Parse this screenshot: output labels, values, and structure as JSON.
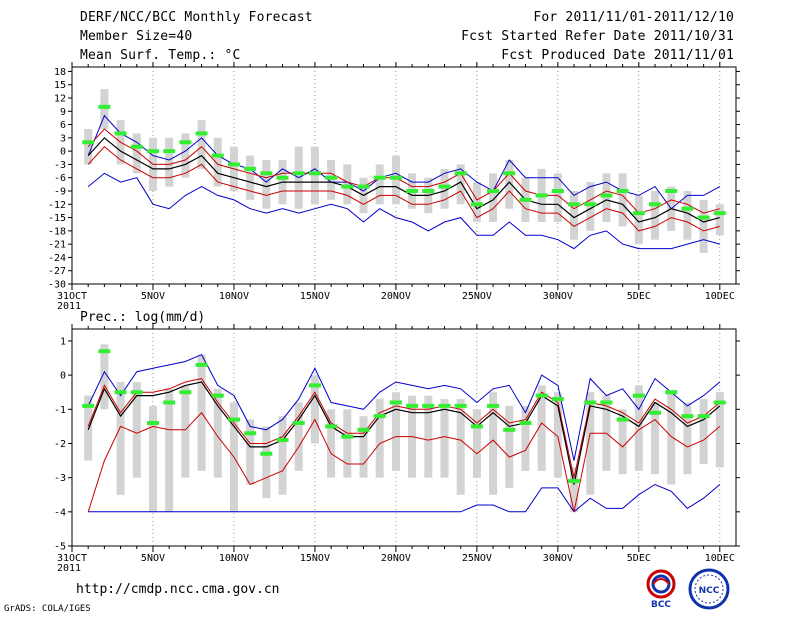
{
  "header": {
    "title": "DERF/NCC/BCC Monthly Forecast",
    "member_size": "Member Size=40",
    "variable": "Mean Surf. Temp.: °C",
    "period": "For 2011/11/01-2011/12/10",
    "started": "Fcst Started Refer Date 2011/10/31",
    "produced": "Fcst Produced Date 2011/11/01"
  },
  "footer": {
    "url": "http://cmdp.ncc.cma.gov.cn",
    "credit": "GrADS: COLA/IGES",
    "logo_left": "BCC",
    "logo_right": "NCC"
  },
  "colors": {
    "envelope": "#0000cc",
    "spread": "#cc0000",
    "mean": "#000000",
    "box": "#d3d3d3",
    "median": "#33ee33"
  },
  "chart_data": [
    {
      "type": "line",
      "title": "Mean Surf. Temp.: °C",
      "x_tick_labels": [
        "31OCT",
        "5NOV",
        "10NOV",
        "15NOV",
        "20NOV",
        "25NOV",
        "30NOV",
        "5DEC",
        "10DEC"
      ],
      "x_year_label": "2011",
      "x_tick_days": [
        0,
        5,
        10,
        15,
        20,
        25,
        30,
        35,
        40
      ],
      "y_tick_labels": [
        "18",
        "15",
        "12",
        "9",
        "6",
        "3",
        "0",
        "-3",
        "-6",
        "-9",
        "-12",
        "-15",
        "-18",
        "-21",
        "-24",
        "-27",
        "-30"
      ],
      "ylim": [
        -30,
        19
      ],
      "days": [
        1,
        2,
        3,
        4,
        5,
        6,
        7,
        8,
        9,
        10,
        11,
        12,
        13,
        14,
        15,
        16,
        17,
        18,
        19,
        20,
        21,
        22,
        23,
        24,
        25,
        26,
        27,
        28,
        29,
        30,
        31,
        32,
        33,
        34,
        35,
        36,
        37,
        38,
        39,
        40
      ],
      "series": [
        {
          "name": "max",
          "values": [
            -1,
            8,
            4,
            2,
            -1,
            -2,
            0,
            3,
            -1,
            -3,
            -4,
            -7,
            -4,
            -6,
            -4,
            -7,
            -7,
            -9,
            -6,
            -5,
            -7,
            -7,
            -5,
            -4,
            -7,
            -9,
            -2,
            -6,
            -6,
            -6,
            -10,
            -8,
            -7,
            -9,
            -10,
            -8,
            -13,
            -10,
            -10,
            -8
          ]
        },
        {
          "name": "upper",
          "values": [
            1,
            5,
            2,
            0,
            -3,
            -3,
            -2,
            1,
            -3,
            -4,
            -5,
            -6,
            -5,
            -5,
            -5,
            -5,
            -7,
            -8,
            -6,
            -6,
            -8,
            -8,
            -7,
            -5,
            -11,
            -9,
            -5,
            -9,
            -10,
            -10,
            -13,
            -11,
            -9,
            -10,
            -14,
            -13,
            -11,
            -12,
            -14,
            -13
          ]
        },
        {
          "name": "mean",
          "values": [
            -1,
            3,
            0,
            -2,
            -4,
            -4,
            -3,
            -1,
            -5,
            -6,
            -7,
            -8,
            -7,
            -7,
            -7,
            -7,
            -8,
            -10,
            -8,
            -8,
            -10,
            -10,
            -9,
            -7,
            -13,
            -11,
            -7,
            -11,
            -12,
            -12,
            -15,
            -13,
            -11,
            -12,
            -16,
            -15,
            -13,
            -14,
            -16,
            -15
          ]
        },
        {
          "name": "lower",
          "values": [
            -3,
            1,
            -2,
            -4,
            -6,
            -6,
            -5,
            -3,
            -7,
            -8,
            -9,
            -10,
            -9,
            -9,
            -9,
            -9,
            -10,
            -12,
            -10,
            -10,
            -12,
            -12,
            -11,
            -9,
            -15,
            -13,
            -9,
            -13,
            -14,
            -14,
            -17,
            -15,
            -13,
            -14,
            -18,
            -17,
            -15,
            -16,
            -18,
            -17
          ]
        },
        {
          "name": "min",
          "values": [
            -8,
            -5,
            -7,
            -6,
            -12,
            -13,
            -10,
            -8,
            -10,
            -11,
            -13,
            -14,
            -13,
            -14,
            -13,
            -12,
            -13,
            -16,
            -13,
            -15,
            -16,
            -18,
            -16,
            -15,
            -19,
            -19,
            -16,
            -19,
            -19,
            -20,
            -22,
            -19,
            -18,
            -21,
            -22,
            -22,
            -22,
            -21,
            -20,
            -21
          ]
        },
        {
          "name": "median",
          "values": [
            2,
            10,
            4,
            1,
            0,
            0,
            2,
            4,
            -1,
            -3,
            -4,
            -5,
            -6,
            -5,
            -5,
            -6,
            -8,
            -8,
            -6,
            -6,
            -9,
            -9,
            -8,
            -5,
            -12,
            -9,
            -5,
            -11,
            -10,
            -9,
            -12,
            -12,
            -10,
            -9,
            -14,
            -12,
            -9,
            -13,
            -15,
            -14
          ]
        },
        {
          "name": "box_high",
          "values": [
            5,
            14,
            7,
            4,
            3,
            3,
            4,
            7,
            3,
            1,
            -1,
            -2,
            -2,
            1,
            1,
            -2,
            -3,
            -6,
            -3,
            -1,
            -5,
            -6,
            -4,
            -3,
            -7,
            -5,
            -2,
            -6,
            -4,
            -5,
            -9,
            -7,
            -5,
            -5,
            -10,
            -9,
            -8,
            -9,
            -11,
            -12
          ]
        },
        {
          "name": "box_low",
          "values": [
            -3,
            5,
            -3,
            -5,
            -9,
            -8,
            -6,
            -4,
            -8,
            -9,
            -11,
            -13,
            -12,
            -13,
            -12,
            -11,
            -12,
            -14,
            -12,
            -12,
            -13,
            -14,
            -13,
            -12,
            -16,
            -16,
            -13,
            -16,
            -16,
            -16,
            -20,
            -18,
            -16,
            -17,
            -21,
            -20,
            -18,
            -20,
            -23,
            -19
          ]
        }
      ]
    },
    {
      "type": "line",
      "title": "Prec.: log(mm/d)",
      "x_tick_labels": [
        "31OCT",
        "5NOV",
        "10NOV",
        "15NOV",
        "20NOV",
        "25NOV",
        "30NOV",
        "5DEC",
        "10DEC"
      ],
      "x_year_label": "2011",
      "x_tick_days": [
        0,
        5,
        10,
        15,
        20,
        25,
        30,
        35,
        40
      ],
      "y_tick_labels": [
        "1",
        "0",
        "-1",
        "-2",
        "-3",
        "-4",
        "-5"
      ],
      "ylim": [
        -5,
        1.2
      ],
      "days": [
        1,
        2,
        3,
        4,
        5,
        6,
        7,
        8,
        9,
        10,
        11,
        12,
        13,
        14,
        15,
        16,
        17,
        18,
        19,
        20,
        21,
        22,
        23,
        24,
        25,
        26,
        27,
        28,
        29,
        30,
        31,
        32,
        33,
        34,
        35,
        36,
        37,
        38,
        39,
        40
      ],
      "series": [
        {
          "name": "max",
          "values": [
            -0.9,
            0.1,
            -0.6,
            0.1,
            0.2,
            0.3,
            0.4,
            0.6,
            -0.3,
            -0.6,
            -1.5,
            -1.6,
            -1.3,
            -0.7,
            0.2,
            -0.8,
            -0.9,
            -1.0,
            -0.5,
            -0.2,
            -0.3,
            -0.4,
            -0.3,
            -0.4,
            -0.8,
            -0.4,
            -0.3,
            -1.1,
            0.0,
            -0.3,
            -2.5,
            -0.1,
            -0.6,
            -0.4,
            -1.0,
            -0.1,
            -0.5,
            -0.9,
            -0.6,
            -0.2
          ]
        },
        {
          "name": "upper",
          "values": [
            -1.5,
            -0.3,
            -1.1,
            -0.5,
            -0.5,
            -0.4,
            -0.2,
            -0.1,
            -0.8,
            -1.4,
            -2.0,
            -2.0,
            -1.8,
            -1.2,
            -0.5,
            -1.4,
            -1.7,
            -1.7,
            -1.1,
            -0.9,
            -1.0,
            -1.0,
            -0.9,
            -1.0,
            -1.4,
            -1.0,
            -1.4,
            -1.3,
            -0.5,
            -0.8,
            -3.0,
            -0.8,
            -0.9,
            -1.1,
            -1.4,
            -0.7,
            -1.0,
            -1.4,
            -1.2,
            -0.8
          ]
        },
        {
          "name": "mean",
          "values": [
            -1.6,
            -0.4,
            -1.2,
            -0.6,
            -0.6,
            -0.5,
            -0.3,
            -0.2,
            -0.9,
            -1.5,
            -2.1,
            -2.1,
            -1.9,
            -1.3,
            -0.6,
            -1.5,
            -1.8,
            -1.8,
            -1.2,
            -1.0,
            -1.1,
            -1.1,
            -1.0,
            -1.1,
            -1.5,
            -1.1,
            -1.5,
            -1.4,
            -0.6,
            -0.9,
            -3.2,
            -0.9,
            -1.0,
            -1.2,
            -1.5,
            -0.8,
            -1.1,
            -1.5,
            -1.3,
            -0.9
          ]
        },
        {
          "name": "lower",
          "values": [
            -4.0,
            -2.5,
            -1.5,
            -1.7,
            -1.5,
            -1.6,
            -1.6,
            -1.1,
            -1.8,
            -2.4,
            -3.2,
            -3.0,
            -2.8,
            -2.1,
            -1.3,
            -2.3,
            -2.6,
            -2.6,
            -2.0,
            -1.8,
            -1.8,
            -1.9,
            -1.8,
            -1.9,
            -2.3,
            -1.9,
            -2.4,
            -2.2,
            -1.4,
            -1.8,
            -4.0,
            -1.7,
            -1.7,
            -2.1,
            -1.6,
            -1.3,
            -1.8,
            -2.1,
            -1.9,
            -1.5
          ]
        },
        {
          "name": "min",
          "values": [
            -4.0,
            -4.0,
            -4.0,
            -4.0,
            -4.0,
            -4.0,
            -4.0,
            -4.0,
            -4.0,
            -4.0,
            -4.0,
            -4.0,
            -4.0,
            -4.0,
            -4.0,
            -4.0,
            -4.0,
            -4.0,
            -4.0,
            -4.0,
            -4.0,
            -4.0,
            -4.0,
            -4.0,
            -3.8,
            -3.8,
            -4.0,
            -4.0,
            -3.3,
            -3.3,
            -4.0,
            -3.6,
            -3.9,
            -3.9,
            -3.5,
            -3.2,
            -3.4,
            -3.9,
            -3.6,
            -3.2
          ]
        },
        {
          "name": "median",
          "values": [
            -0.9,
            0.7,
            -0.5,
            -0.5,
            -1.4,
            -0.8,
            -0.5,
            0.3,
            -0.6,
            -1.3,
            -1.7,
            -2.3,
            -1.9,
            -1.4,
            -0.3,
            -1.5,
            -1.8,
            -1.6,
            -1.2,
            -0.8,
            -0.9,
            -0.9,
            -0.9,
            -0.9,
            -1.5,
            -0.9,
            -1.6,
            -1.4,
            -0.6,
            -0.7,
            -3.1,
            -0.8,
            -0.8,
            -1.3,
            -0.6,
            -1.1,
            -0.5,
            -1.2,
            -1.2,
            -0.8
          ]
        },
        {
          "name": "box_high",
          "values": [
            -0.6,
            0.9,
            -0.2,
            -0.2,
            -0.9,
            -0.4,
            -0.3,
            0.6,
            -0.4,
            -0.8,
            -1.3,
            -1.5,
            -1.2,
            -0.8,
            0.0,
            -1.0,
            -1.0,
            -1.2,
            -0.7,
            -0.5,
            -0.6,
            -0.6,
            -0.7,
            -0.7,
            -1.0,
            -0.5,
            -0.9,
            -0.9,
            -0.3,
            -0.5,
            -2.7,
            -0.5,
            -0.6,
            -1.0,
            -0.3,
            -0.8,
            -0.5,
            -0.8,
            -0.7,
            -0.5
          ]
        },
        {
          "name": "box_low",
          "values": [
            -2.5,
            -1.0,
            -3.5,
            -3.0,
            -4.0,
            -4.0,
            -3.0,
            -2.8,
            -3.0,
            -4.0,
            -3.2,
            -3.6,
            -3.5,
            -2.8,
            -2.0,
            -3.0,
            -3.0,
            -3.0,
            -3.0,
            -2.8,
            -3.0,
            -3.0,
            -3.0,
            -3.5,
            -3.0,
            -3.5,
            -3.3,
            -2.8,
            -2.8,
            -3.0,
            -4.0,
            -3.5,
            -2.8,
            -2.9,
            -2.8,
            -2.9,
            -3.2,
            -2.9,
            -2.6,
            -2.7
          ]
        }
      ]
    }
  ]
}
